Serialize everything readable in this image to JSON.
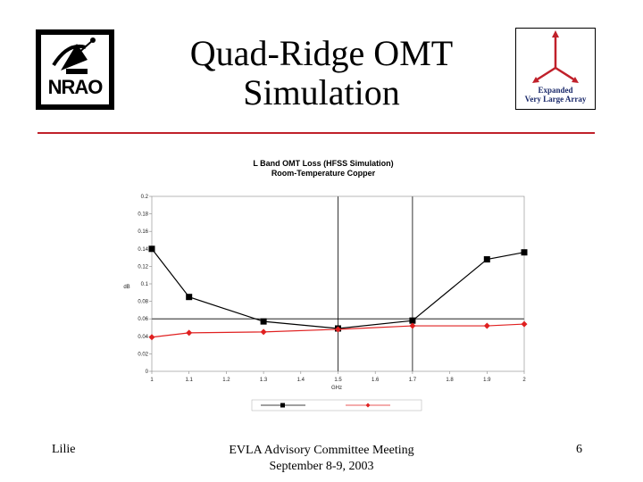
{
  "slide": {
    "title_line1": "Quad-Ridge OMT",
    "title_line2": "Simulation",
    "nrao_logo_text": "NRAO",
    "evla_logo": {
      "line1": "Expanded",
      "line2": "Very Large Array"
    },
    "footer_left": "Lilie",
    "footer_center_line1": "EVLA Advisory Committee Meeting",
    "footer_center_line2": "September 8-9, 2003",
    "footer_right": "6",
    "accent_color": "#c0202a"
  },
  "chart_data": {
    "type": "line",
    "title": "L Band OMT Loss (HFSS Simulation)",
    "subtitle": "Room-Temperature Copper",
    "xlabel": "GHz",
    "ylabel": "dB",
    "xlim": [
      1,
      2
    ],
    "ylim": [
      0,
      0.2
    ],
    "x_ticks": [
      1,
      1.1,
      1.2,
      1.3,
      1.4,
      1.5,
      1.6,
      1.7,
      1.8,
      1.9,
      2
    ],
    "y_ticks": [
      0,
      0.02,
      0.04,
      0.06,
      0.08,
      0.1,
      0.12,
      0.14,
      0.16,
      0.18,
      0.2
    ],
    "y_tick_labels": [
      "0",
      "0.02",
      "0.04",
      "0.06",
      "0.08",
      "0.1",
      "0.12",
      "0.14",
      "0.16",
      "0.18",
      "0.2"
    ],
    "reference_lines": {
      "vertical_x": [
        1.5,
        1.7
      ],
      "horizontal_y": [
        0.06
      ]
    },
    "series": [
      {
        "name": "",
        "color": "#000000",
        "marker": "square",
        "x": [
          1.0,
          1.1,
          1.3,
          1.5,
          1.7,
          1.9,
          2.0
        ],
        "y": [
          0.14,
          0.085,
          0.057,
          0.049,
          0.058,
          0.128,
          0.136
        ]
      },
      {
        "name": "",
        "color": "#e02020",
        "marker": "diamond",
        "x": [
          1.0,
          1.1,
          1.3,
          1.5,
          1.7,
          1.9,
          2.0
        ],
        "y": [
          0.039,
          0.044,
          0.045,
          0.048,
          0.052,
          0.052,
          0.054
        ]
      }
    ],
    "legend_position": "bottom"
  }
}
